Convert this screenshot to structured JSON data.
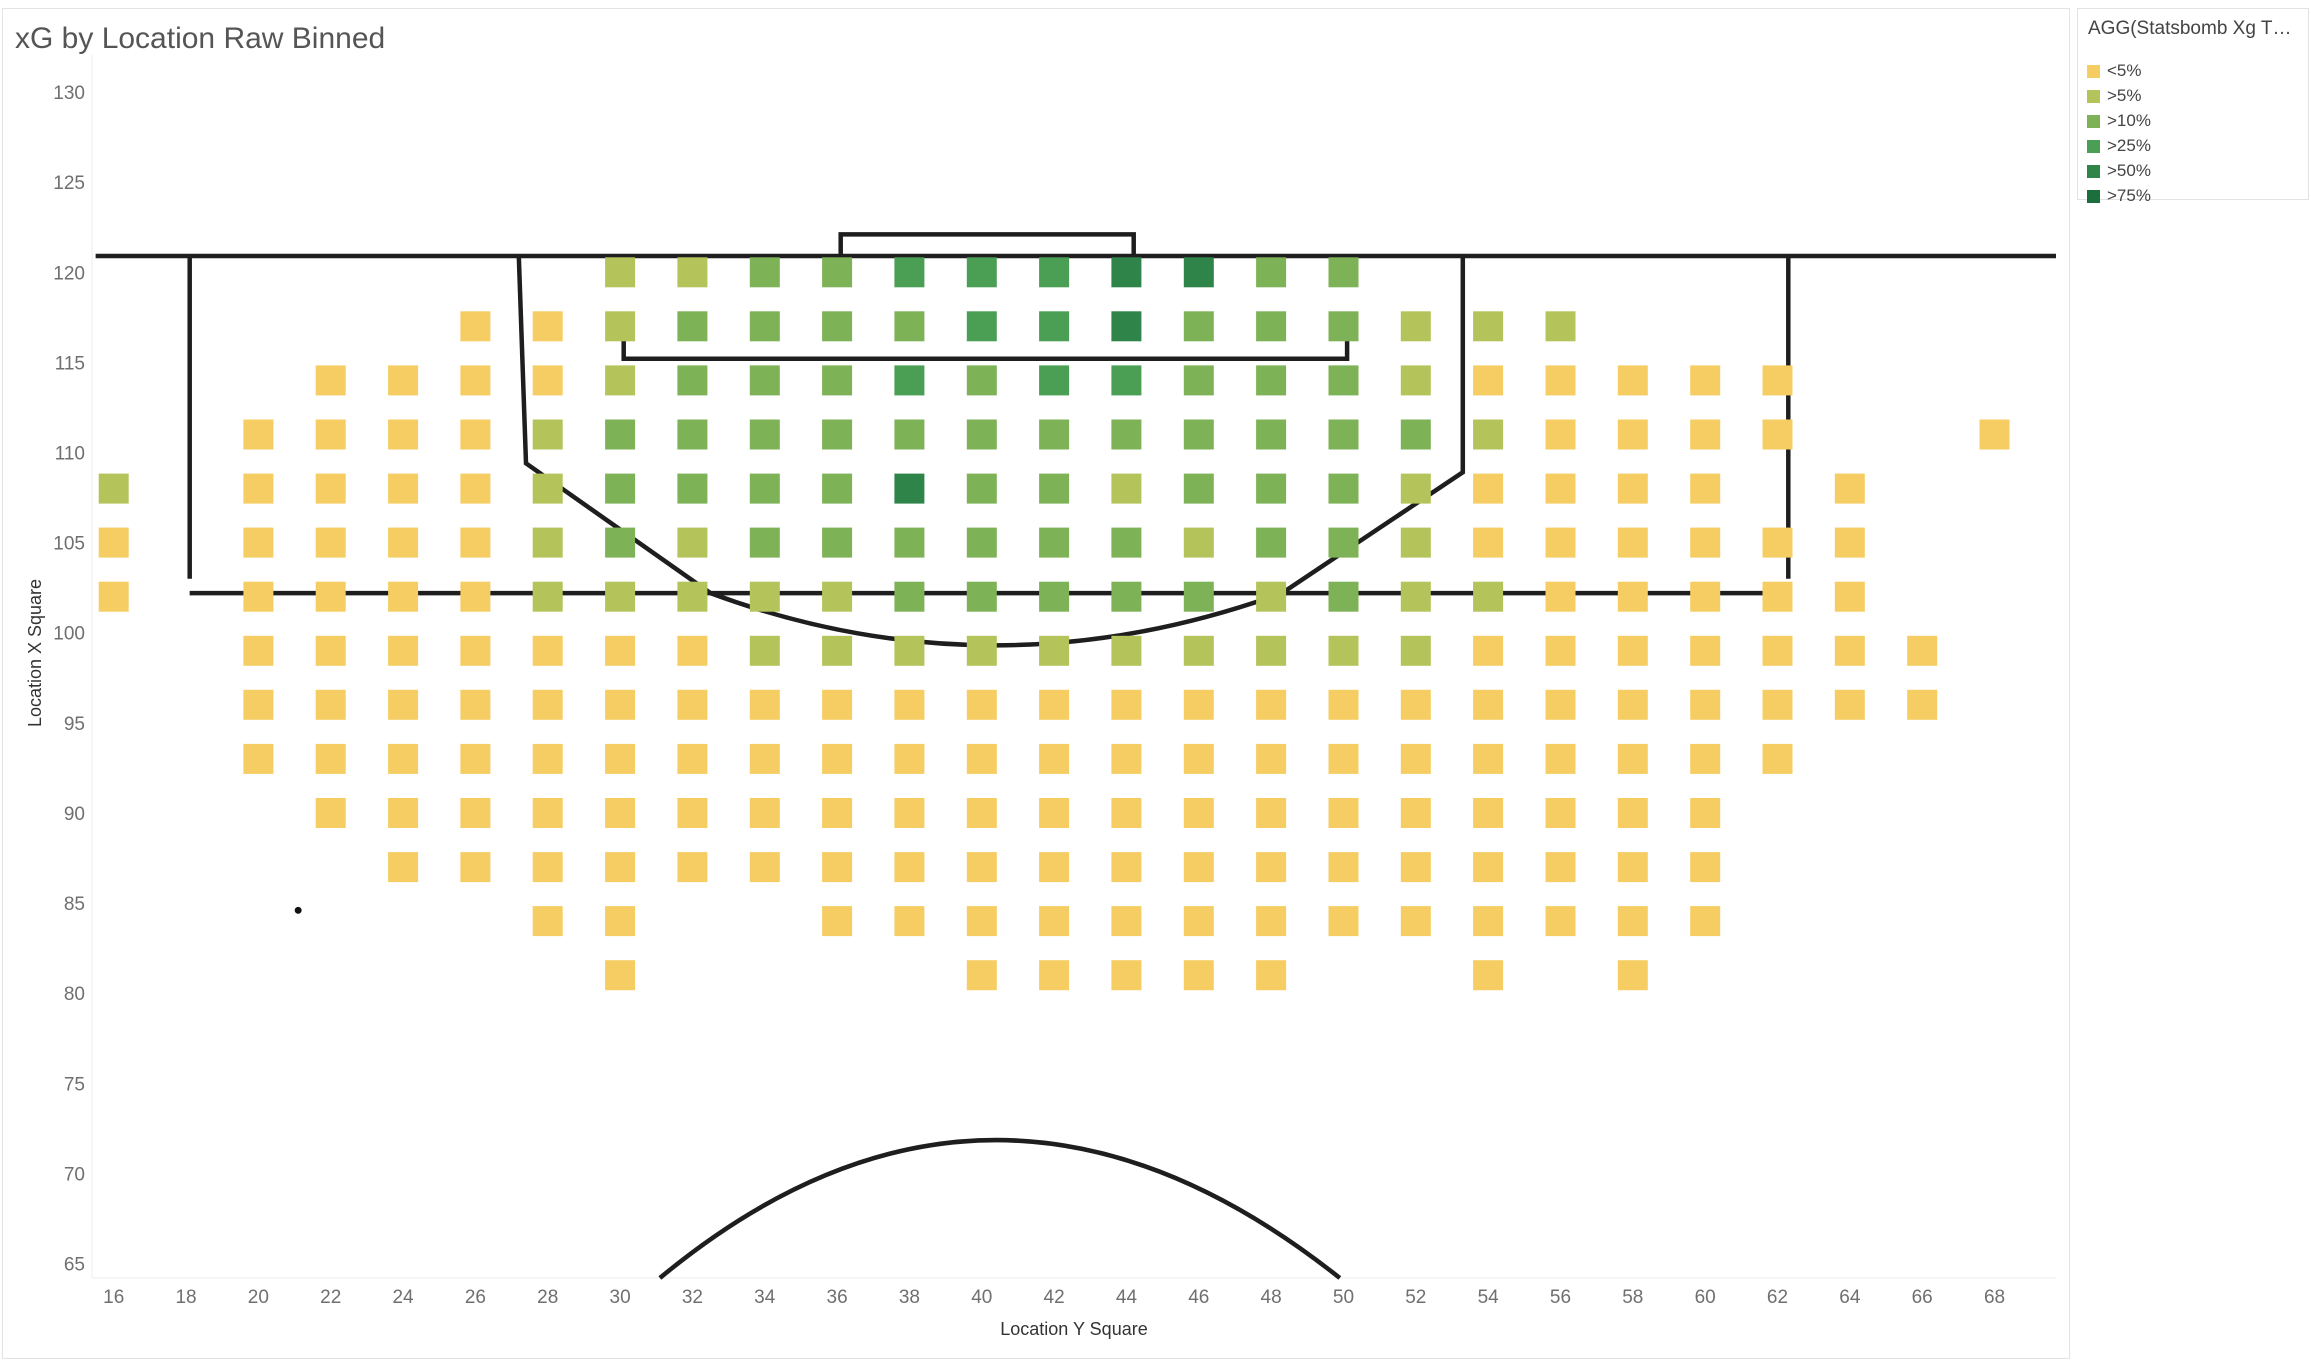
{
  "colors": {
    "c0": "#f5cd63",
    "c1": "#b5c35b",
    "c2": "#7db257",
    "c3": "#4a9f55",
    "c4": "#2e8449",
    "c5": "#1b6f3c"
  },
  "legend": {
    "title": "AGG(Statsbomb Xg Thr...",
    "items": [
      {
        "label": "<5%",
        "color": "#f5cd63"
      },
      {
        "label": ">5%",
        "color": "#b5c35b"
      },
      {
        "label": ">10%",
        "color": "#7db257"
      },
      {
        "label": ">25%",
        "color": "#4a9f55"
      },
      {
        "label": ">50%",
        "color": "#2e8449"
      },
      {
        "label": ">75%",
        "color": "#1b6f3c"
      }
    ]
  },
  "chart_data": {
    "type": "heatmap",
    "title": "xG by Location Raw Binned",
    "xlabel": "Location Y Square",
    "ylabel": "Location X Square",
    "x_ticks": [
      16,
      18,
      20,
      22,
      24,
      26,
      28,
      30,
      32,
      34,
      36,
      38,
      40,
      42,
      44,
      46,
      48,
      50,
      52,
      54,
      56,
      58,
      60,
      62,
      64,
      66,
      68
    ],
    "y_ticks": [
      130,
      125,
      120,
      115,
      110,
      105,
      100,
      95,
      90,
      85,
      80,
      75,
      70,
      65
    ],
    "xlim": [
      15.4,
      69.7
    ],
    "ylim": [
      64.2,
      131.5
    ],
    "grid": false,
    "legend_position": "right",
    "bin_x_start": 16,
    "bin_y_start": 120,
    "bin_step_x": 2,
    "bin_step_y": -3,
    "rows": [
      "       11223334422  ",
      "     0012222334222111",
      "   000012223233222100000",
      "  0000122222222222210000  0",
      "1 000012222422122210000 0",
      "0 00001212222221221000000",
      "0 00001111122222121100000",
      "  000000011111111110000000",
      "  000000000000000000000000",
      "  0000000000000000000000",
      "   00000000000000000000",
      "    0000000000000000000",
      "      00  0000000000000",
      "       0    00000  0 0"
    ],
    "annotation_marks": [
      {
        "x": 21.1,
        "y": 84.6
      }
    ]
  }
}
